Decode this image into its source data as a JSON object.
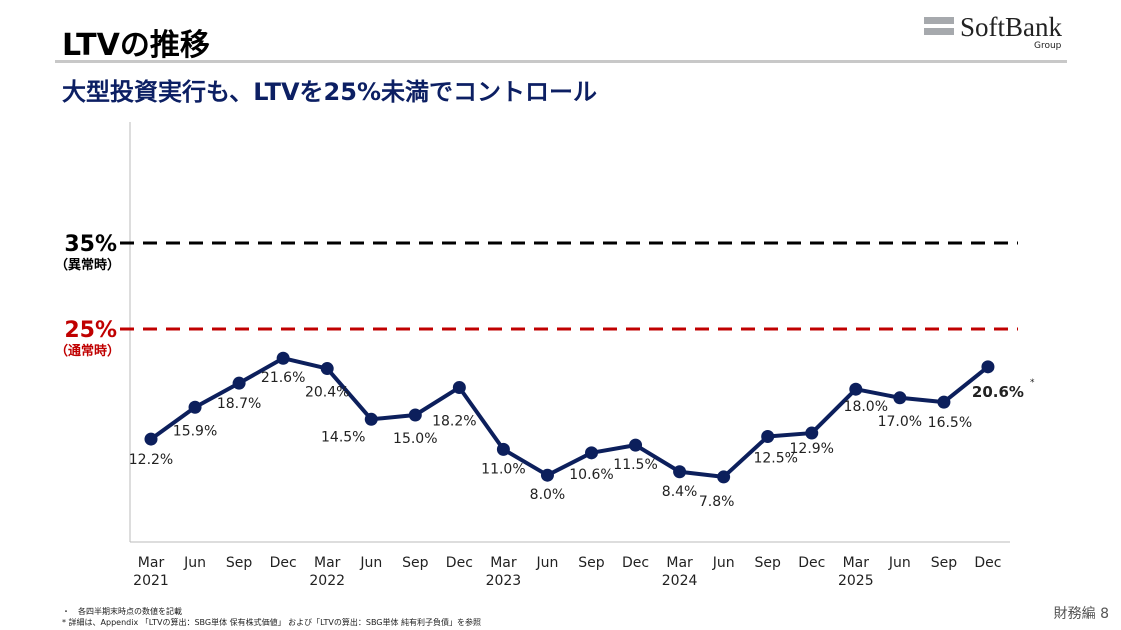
{
  "header": {
    "title": "LTVの推移",
    "subtitle": "大型投資実行も、LTVを25%未満でコントロール",
    "logo_text": "SoftBank",
    "logo_sub": "Group"
  },
  "footer": {
    "note1": "・　各四半期末時点の数値を記載",
    "note2": "* 詳細は、Appendix 「LTVの算出：SBG単体 保有株式価値」 および「LTVの算出：SBG単体 純有利子負債」を参照",
    "page": "財務編 8"
  },
  "chart_data": {
    "type": "line",
    "title": "",
    "xlabel": "",
    "ylabel": "",
    "ylim": [
      0,
      48
    ],
    "grid": false,
    "categories": [
      "Mar 2021",
      "Jun",
      "Sep",
      "Dec",
      "Mar 2022",
      "Jun",
      "Sep",
      "Dec",
      "Mar 2023",
      "Jun",
      "Sep",
      "Dec",
      "Mar 2024",
      "Jun",
      "Sep",
      "Dec",
      "Mar 2025",
      "Jun",
      "Sep",
      "Dec"
    ],
    "tick_labels": [
      [
        "Mar",
        "2021"
      ],
      [
        "Jun"
      ],
      [
        "Sep"
      ],
      [
        "Dec"
      ],
      [
        "Mar",
        "2022"
      ],
      [
        "Jun"
      ],
      [
        "Sep"
      ],
      [
        "Dec"
      ],
      [
        "Mar",
        "2023"
      ],
      [
        "Jun"
      ],
      [
        "Sep"
      ],
      [
        "Dec"
      ],
      [
        "Mar",
        "2024"
      ],
      [
        "Jun"
      ],
      [
        "Sep"
      ],
      [
        "Dec"
      ],
      [
        "Mar",
        "2025"
      ],
      [
        "Jun"
      ],
      [
        "Sep"
      ],
      [
        "Dec"
      ]
    ],
    "values": [
      12.2,
      15.9,
      18.7,
      21.6,
      20.4,
      14.5,
      15.0,
      18.2,
      11.0,
      8.0,
      10.6,
      11.5,
      8.4,
      7.8,
      12.5,
      12.9,
      18.0,
      17.0,
      16.5,
      20.6
    ],
    "data_labels": [
      "12.2%",
      "15.9%",
      "18.7%",
      "21.6%",
      "20.4%",
      "14.5%",
      "15.0%",
      "18.2%",
      "11.0%",
      "8.0%",
      "10.6%",
      "11.5%",
      "8.4%",
      "7.8%",
      "12.5%",
      "12.9%",
      "18.0%",
      "17.0%",
      "16.5%",
      "20.6%"
    ],
    "last_label_marker": "*",
    "series_color": "#0c1f5c",
    "reference_lines": [
      {
        "value": 35,
        "label": "35%",
        "sublabel": "（異常時）",
        "color": "#000000"
      },
      {
        "value": 25,
        "label": "25%",
        "sublabel": "（通常時）",
        "color": "#c00000"
      }
    ]
  }
}
